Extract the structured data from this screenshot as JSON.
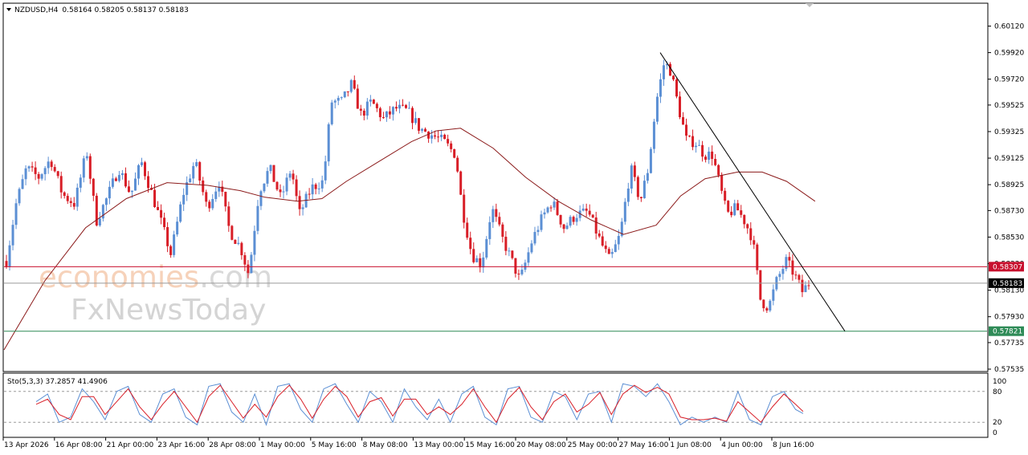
{
  "header": {
    "symbol_label": "NZDUSD,H4",
    "ohlc_label": "0.58164 0.58205 0.58137 0.58183"
  },
  "indicator": {
    "label": "Sto(5,3,3) 37.2857 41.4906",
    "levels": [
      80,
      20
    ],
    "scale_labels": [
      "100",
      "80",
      "20",
      "0"
    ]
  },
  "watermark": {
    "line1_a": "economies",
    "line1_b": ".com",
    "line2": "FxNewsToday"
  },
  "colors": {
    "bull": "#5b8fd4",
    "bear": "#d81e27",
    "ma": "#8b1a1a",
    "resistance": "#c8102e",
    "support": "#2e8b57",
    "current": "#9a9a9a",
    "stoch_main": "#5b8fd4",
    "stoch_signal": "#d81e27"
  },
  "chart_data": {
    "type": "candlestick",
    "price_axis": {
      "min": 0.57535,
      "max": 0.6012,
      "tick_labels": [
        "0.60120",
        "0.59920",
        "0.59720",
        "0.59525",
        "0.59325",
        "0.59125",
        "0.58925",
        "0.58730",
        "0.58530",
        "0.58330",
        "0.58130",
        "0.57930",
        "0.57735",
        "0.57535"
      ]
    },
    "time_labels": [
      "13 Apr 2026",
      "16 Apr 08:00",
      "21 Apr 00:00",
      "23 Apr 16:00",
      "28 Apr 08:00",
      "1 May 00:00",
      "5 May 16:00",
      "8 May 08:00",
      "13 May 00:00",
      "15 May 16:00",
      "20 May 08:00",
      "25 May 00:00",
      "27 May 16:00",
      "1 Jun 08:00",
      "4 Jun 00:00",
      "8 Jun 16:00"
    ],
    "levels": {
      "resistance": {
        "value": 0.58307,
        "label": "0.58307"
      },
      "current": {
        "value": 0.58183,
        "label": "0.58183"
      },
      "support": {
        "value": 0.57821,
        "label": "0.57821"
      }
    },
    "trendline": {
      "from": [
        0.265,
        0.5992
      ],
      "to": [
        0.32,
        0.57821
      ]
    },
    "close_path": [
      [
        0.0,
        0.5835
      ],
      [
        0.012,
        0.5878
      ],
      [
        0.025,
        0.5905
      ],
      [
        0.04,
        0.5898
      ],
      [
        0.055,
        0.5912
      ],
      [
        0.07,
        0.5885
      ],
      [
        0.085,
        0.5878
      ],
      [
        0.1,
        0.5918
      ],
      [
        0.112,
        0.5865
      ],
      [
        0.125,
        0.5882
      ],
      [
        0.14,
        0.5905
      ],
      [
        0.155,
        0.5885
      ],
      [
        0.168,
        0.591
      ],
      [
        0.18,
        0.5888
      ],
      [
        0.195,
        0.586
      ],
      [
        0.205,
        0.584
      ],
      [
        0.22,
        0.5885
      ],
      [
        0.235,
        0.591
      ],
      [
        0.25,
        0.5875
      ],
      [
        0.265,
        0.5895
      ],
      [
        0.278,
        0.5858
      ],
      [
        0.292,
        0.5845
      ],
      [
        0.302,
        0.5825
      ],
      [
        0.315,
        0.5888
      ],
      [
        0.328,
        0.5905
      ],
      [
        0.342,
        0.5882
      ],
      [
        0.355,
        0.5905
      ],
      [
        0.365,
        0.587
      ],
      [
        0.38,
        0.589
      ],
      [
        0.395,
        0.5895
      ],
      [
        0.405,
        0.5955
      ],
      [
        0.418,
        0.5955
      ],
      [
        0.43,
        0.5968
      ],
      [
        0.442,
        0.5945
      ],
      [
        0.455,
        0.5955
      ],
      [
        0.47,
        0.5942
      ],
      [
        0.485,
        0.595
      ],
      [
        0.5,
        0.5948
      ],
      [
        0.515,
        0.5935
      ],
      [
        0.53,
        0.593
      ],
      [
        0.545,
        0.5925
      ],
      [
        0.56,
        0.5915
      ],
      [
        0.568,
        0.5875
      ],
      [
        0.58,
        0.584
      ],
      [
        0.592,
        0.5832
      ],
      [
        0.605,
        0.5875
      ],
      [
        0.618,
        0.5852
      ],
      [
        0.63,
        0.5835
      ],
      [
        0.64,
        0.582
      ],
      [
        0.655,
        0.585
      ],
      [
        0.668,
        0.5868
      ],
      [
        0.68,
        0.588
      ],
      [
        0.695,
        0.586
      ],
      [
        0.71,
        0.587
      ],
      [
        0.725,
        0.5872
      ],
      [
        0.74,
        0.585
      ],
      [
        0.752,
        0.5835
      ],
      [
        0.765,
        0.5855
      ],
      [
        0.778,
        0.5905
      ],
      [
        0.79,
        0.588
      ],
      [
        0.8,
        0.5905
      ],
      [
        0.81,
        0.5955
      ],
      [
        0.82,
        0.5985
      ],
      [
        0.828,
        0.5978
      ],
      [
        0.838,
        0.595
      ],
      [
        0.848,
        0.5925
      ],
      [
        0.858,
        0.5925
      ],
      [
        0.87,
        0.5915
      ],
      [
        0.88,
        0.5915
      ],
      [
        0.888,
        0.5895
      ],
      [
        0.898,
        0.587
      ],
      [
        0.91,
        0.5875
      ],
      [
        0.92,
        0.5865
      ],
      [
        0.93,
        0.5852
      ],
      [
        0.94,
        0.5805
      ],
      [
        0.95,
        0.58
      ],
      [
        0.96,
        0.582
      ],
      [
        0.972,
        0.5835
      ],
      [
        0.982,
        0.5825
      ],
      [
        0.992,
        0.5812
      ],
      [
        1.0,
        0.5818
      ]
    ],
    "moving_average": [
      [
        0.0,
        0.5768
      ],
      [
        0.05,
        0.582
      ],
      [
        0.1,
        0.586
      ],
      [
        0.15,
        0.5882
      ],
      [
        0.2,
        0.5894
      ],
      [
        0.25,
        0.5892
      ],
      [
        0.29,
        0.5888
      ],
      [
        0.32,
        0.5883
      ],
      [
        0.36,
        0.588
      ],
      [
        0.39,
        0.5882
      ],
      [
        0.42,
        0.5895
      ],
      [
        0.46,
        0.591
      ],
      [
        0.5,
        0.5925
      ],
      [
        0.53,
        0.5933
      ],
      [
        0.56,
        0.5935
      ],
      [
        0.6,
        0.592
      ],
      [
        0.64,
        0.5898
      ],
      [
        0.68,
        0.588
      ],
      [
        0.72,
        0.5866
      ],
      [
        0.76,
        0.5855
      ],
      [
        0.8,
        0.5862
      ],
      [
        0.83,
        0.5884
      ],
      [
        0.86,
        0.5897
      ],
      [
        0.9,
        0.5902
      ],
      [
        0.93,
        0.5902
      ],
      [
        0.96,
        0.5895
      ],
      [
        0.995,
        0.588
      ]
    ],
    "stochastic": {
      "range": [
        0,
        100
      ],
      "main": [
        [
          0.0,
          60
        ],
        [
          0.015,
          75
        ],
        [
          0.03,
          20
        ],
        [
          0.045,
          30
        ],
        [
          0.06,
          85
        ],
        [
          0.075,
          60
        ],
        [
          0.09,
          25
        ],
        [
          0.105,
          80
        ],
        [
          0.12,
          90
        ],
        [
          0.135,
          35
        ],
        [
          0.15,
          20
        ],
        [
          0.165,
          75
        ],
        [
          0.18,
          85
        ],
        [
          0.195,
          30
        ],
        [
          0.21,
          15
        ],
        [
          0.225,
          90
        ],
        [
          0.24,
          95
        ],
        [
          0.255,
          40
        ],
        [
          0.27,
          20
        ],
        [
          0.285,
          75
        ],
        [
          0.3,
          15
        ],
        [
          0.315,
          90
        ],
        [
          0.33,
          95
        ],
        [
          0.345,
          45
        ],
        [
          0.36,
          20
        ],
        [
          0.375,
          85
        ],
        [
          0.39,
          95
        ],
        [
          0.405,
          55
        ],
        [
          0.42,
          20
        ],
        [
          0.435,
          80
        ],
        [
          0.45,
          60
        ],
        [
          0.465,
          20
        ],
        [
          0.48,
          85
        ],
        [
          0.495,
          50
        ],
        [
          0.51,
          25
        ],
        [
          0.525,
          65
        ],
        [
          0.54,
          20
        ],
        [
          0.555,
          75
        ],
        [
          0.57,
          90
        ],
        [
          0.585,
          30
        ],
        [
          0.6,
          15
        ],
        [
          0.615,
          85
        ],
        [
          0.63,
          90
        ],
        [
          0.645,
          30
        ],
        [
          0.66,
          20
        ],
        [
          0.675,
          80
        ],
        [
          0.69,
          70
        ],
        [
          0.705,
          25
        ],
        [
          0.72,
          75
        ],
        [
          0.735,
          80
        ],
        [
          0.75,
          20
        ],
        [
          0.765,
          95
        ],
        [
          0.78,
          90
        ],
        [
          0.795,
          70
        ],
        [
          0.81,
          95
        ],
        [
          0.825,
          60
        ],
        [
          0.84,
          15
        ],
        [
          0.855,
          30
        ],
        [
          0.87,
          20
        ],
        [
          0.885,
          30
        ],
        [
          0.9,
          20
        ],
        [
          0.915,
          80
        ],
        [
          0.93,
          25
        ],
        [
          0.945,
          15
        ],
        [
          0.96,
          70
        ],
        [
          0.975,
          80
        ],
        [
          0.99,
          45
        ],
        [
          1.0,
          37
        ]
      ],
      "signal": [
        [
          0.0,
          55
        ],
        [
          0.015,
          65
        ],
        [
          0.03,
          35
        ],
        [
          0.045,
          25
        ],
        [
          0.06,
          70
        ],
        [
          0.075,
          70
        ],
        [
          0.09,
          35
        ],
        [
          0.105,
          60
        ],
        [
          0.12,
          85
        ],
        [
          0.135,
          50
        ],
        [
          0.15,
          25
        ],
        [
          0.165,
          55
        ],
        [
          0.18,
          80
        ],
        [
          0.195,
          50
        ],
        [
          0.21,
          20
        ],
        [
          0.225,
          70
        ],
        [
          0.24,
          92
        ],
        [
          0.255,
          60
        ],
        [
          0.27,
          28
        ],
        [
          0.285,
          55
        ],
        [
          0.3,
          30
        ],
        [
          0.315,
          70
        ],
        [
          0.33,
          92
        ],
        [
          0.345,
          65
        ],
        [
          0.36,
          28
        ],
        [
          0.375,
          65
        ],
        [
          0.39,
          90
        ],
        [
          0.405,
          70
        ],
        [
          0.42,
          30
        ],
        [
          0.435,
          60
        ],
        [
          0.45,
          68
        ],
        [
          0.465,
          32
        ],
        [
          0.48,
          65
        ],
        [
          0.495,
          65
        ],
        [
          0.51,
          35
        ],
        [
          0.525,
          50
        ],
        [
          0.54,
          35
        ],
        [
          0.555,
          55
        ],
        [
          0.57,
          85
        ],
        [
          0.585,
          50
        ],
        [
          0.6,
          20
        ],
        [
          0.615,
          65
        ],
        [
          0.63,
          88
        ],
        [
          0.645,
          50
        ],
        [
          0.66,
          25
        ],
        [
          0.675,
          60
        ],
        [
          0.69,
          75
        ],
        [
          0.705,
          40
        ],
        [
          0.72,
          55
        ],
        [
          0.735,
          78
        ],
        [
          0.75,
          35
        ],
        [
          0.765,
          75
        ],
        [
          0.78,
          92
        ],
        [
          0.795,
          78
        ],
        [
          0.81,
          88
        ],
        [
          0.825,
          75
        ],
        [
          0.84,
          30
        ],
        [
          0.855,
          25
        ],
        [
          0.87,
          25
        ],
        [
          0.885,
          28
        ],
        [
          0.9,
          22
        ],
        [
          0.915,
          60
        ],
        [
          0.93,
          40
        ],
        [
          0.945,
          20
        ],
        [
          0.96,
          50
        ],
        [
          0.975,
          75
        ],
        [
          0.99,
          55
        ],
        [
          1.0,
          41
        ]
      ]
    }
  }
}
